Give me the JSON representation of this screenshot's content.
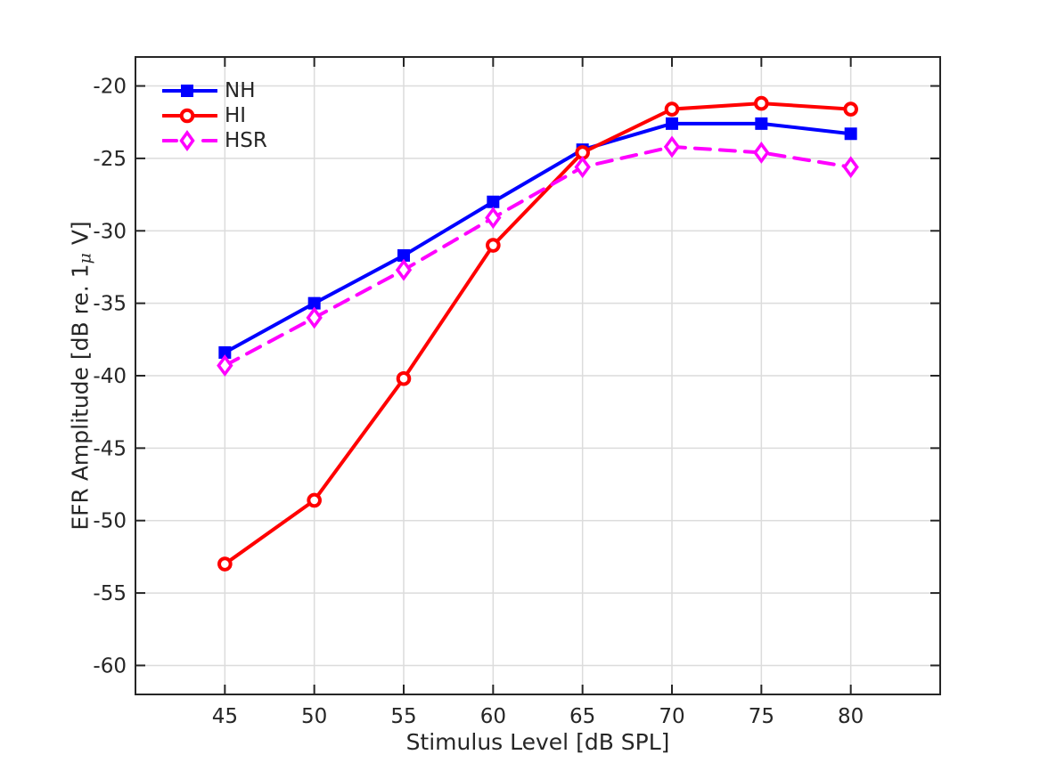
{
  "chart_data": {
    "type": "line",
    "xlabel": "Stimulus Level [dB SPL]",
    "ylabel": "EFR Amplitude [dB re. 1μ V]",
    "ylabel_parts": {
      "prefix": "EFR Amplitude [dB re. 1",
      "mu": "μ",
      "suffix": " V]"
    },
    "x": [
      45,
      50,
      55,
      60,
      65,
      70,
      75,
      80
    ],
    "xticks": [
      "45",
      "50",
      "55",
      "60",
      "65",
      "70",
      "75",
      "80"
    ],
    "yticks": [
      "-20",
      "-25",
      "-30",
      "-35",
      "-40",
      "-45",
      "-50",
      "-55",
      "-60"
    ],
    "ytick_values": [
      -20,
      -25,
      -30,
      -35,
      -40,
      -45,
      -50,
      -55,
      -60
    ],
    "xlim": [
      40,
      85
    ],
    "ylim": [
      -62,
      -18
    ],
    "grid": true,
    "legend_position": "top-left-inside",
    "series": [
      {
        "name": "NH",
        "color": "#0000FF",
        "line_style": "solid",
        "marker": "square",
        "marker_fill": "filled",
        "values": [
          -38.4,
          -35.0,
          -31.7,
          -28.0,
          -24.4,
          -22.6,
          -22.6,
          -23.3
        ]
      },
      {
        "name": "HI",
        "color": "#FF0000",
        "line_style": "solid",
        "marker": "circle",
        "marker_fill": "open",
        "values": [
          -53.0,
          -48.6,
          -40.2,
          -31.0,
          -24.6,
          -21.6,
          -21.2,
          -21.6
        ]
      },
      {
        "name": "HSR",
        "color": "#FF00FF",
        "line_style": "dashed",
        "marker": "diamond",
        "marker_fill": "open",
        "values": [
          -39.3,
          -36.0,
          -32.7,
          -29.1,
          -25.6,
          -24.2,
          -24.6,
          -25.6
        ]
      }
    ],
    "colors": {
      "axis": "#262626",
      "tick_label": "#262626",
      "grid": "#dcdcdc",
      "background": "#ffffff"
    }
  }
}
